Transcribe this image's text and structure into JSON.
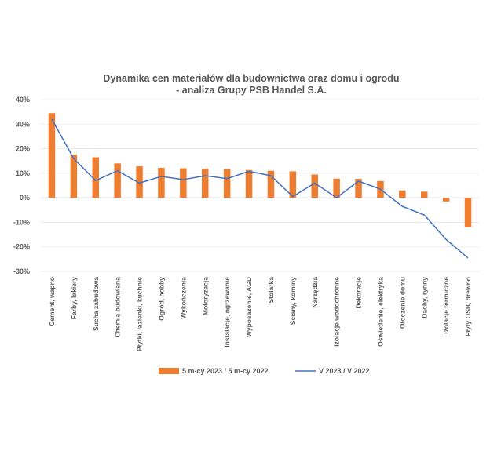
{
  "chart_data": {
    "type": "bar",
    "title": "Dynamika cen materiałów dla budownictwa oraz domu i ogrodu",
    "subtitle": "- analiza Grupy PSB Handel S.A.",
    "categories": [
      "Cement, wapno",
      "Farby, lakiery",
      "Sucha zabudowa",
      "Chemia budowlana",
      "Płytki, łazienki, kuchnie",
      "Ogród, hobby",
      "Wykończenia",
      "Motoryzacja",
      "Instalacje, ogrzewanie",
      "Wyposażenie, AGD",
      "Stolarka",
      "Ściany, kominy",
      "Narzędzia",
      "Izolacje wodochronne",
      "Dekoracje",
      "Oświetlenie, elektryka",
      "Otoczenie domu",
      "Dachy, rynny",
      "Izolacje termiczne",
      "Płyty OSB, drewno"
    ],
    "series": [
      {
        "name": "5 m-cy 2023 / 5 m-cy 2022",
        "kind": "bar",
        "color": "#ED7D31",
        "values": [
          34.5,
          17.5,
          16.5,
          14.0,
          12.8,
          12.2,
          12.0,
          11.8,
          11.7,
          11.3,
          11.0,
          10.8,
          9.5,
          7.8,
          7.7,
          6.8,
          3.0,
          2.5,
          -1.5,
          -12.0
        ]
      },
      {
        "name": "V 2023 / V 2022",
        "kind": "line",
        "color": "#4472C4",
        "values": [
          32.0,
          16.0,
          7.0,
          11.0,
          6.0,
          8.7,
          7.4,
          9.0,
          7.8,
          10.8,
          9.0,
          0.5,
          6.0,
          0.0,
          6.8,
          3.5,
          -3.5,
          -7.0,
          -17.0,
          -24.5
        ]
      }
    ],
    "yticks": [
      "40%",
      "30%",
      "20%",
      "10%",
      "0%",
      "-10%",
      "-20%",
      "-30%"
    ],
    "ylim": [
      -30,
      40
    ],
    "xlabel": "",
    "ylabel": "",
    "grid": true,
    "legend_position": "bottom"
  }
}
